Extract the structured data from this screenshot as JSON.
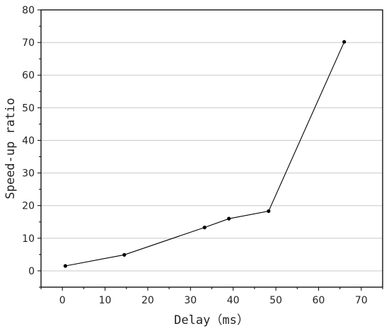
{
  "chart_data": {
    "type": "line",
    "title": "",
    "xlabel": "Delay（ms）",
    "ylabel": "Speed-up ratio",
    "xlim": [
      -5,
      75
    ],
    "ylim": [
      -5,
      80
    ],
    "xticks": [
      0,
      10,
      20,
      30,
      40,
      50,
      60,
      70
    ],
    "yticks": [
      0,
      10,
      20,
      30,
      40,
      50,
      60,
      70,
      80
    ],
    "x_minor_step": 5,
    "y_minor_step": 5,
    "grid": "horizontal",
    "series": [
      {
        "color": "#000000",
        "x": [
          0.7,
          14.5,
          33.3,
          39.0,
          48.3,
          66.0
        ],
        "y": [
          1.5,
          4.9,
          13.3,
          16.0,
          18.3,
          70.2
        ]
      }
    ]
  }
}
